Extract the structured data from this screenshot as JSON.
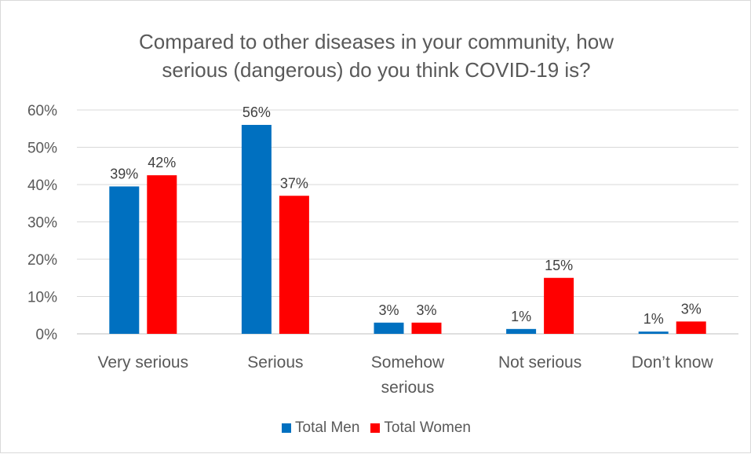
{
  "chart_data": {
    "type": "bar",
    "title_lines": [
      "Compared to other diseases in your community, how",
      "serious (dangerous) do you think COVID-19 is?"
    ],
    "categories": [
      [
        "Very serious"
      ],
      [
        "Serious"
      ],
      [
        "Somehow",
        "serious"
      ],
      [
        "Not serious"
      ],
      [
        "Don’t know"
      ]
    ],
    "series": [
      {
        "name": "Total Men",
        "color": "#0070C0",
        "values": [
          39.5,
          56,
          3,
          1.3,
          0.6
        ],
        "labels": [
          "39%",
          "56%",
          "3%",
          "1%",
          "1%"
        ]
      },
      {
        "name": "Total Women",
        "color": "#FF0000",
        "values": [
          42.5,
          37,
          3,
          15,
          3.3
        ],
        "labels": [
          "42%",
          "37%",
          "3%",
          "15%",
          "3%"
        ]
      }
    ],
    "yticks": [
      "0%",
      "10%",
      "20%",
      "30%",
      "40%",
      "50%",
      "60%"
    ],
    "ylim": [
      0,
      60
    ],
    "grid": true,
    "legend_position": "bottom"
  }
}
